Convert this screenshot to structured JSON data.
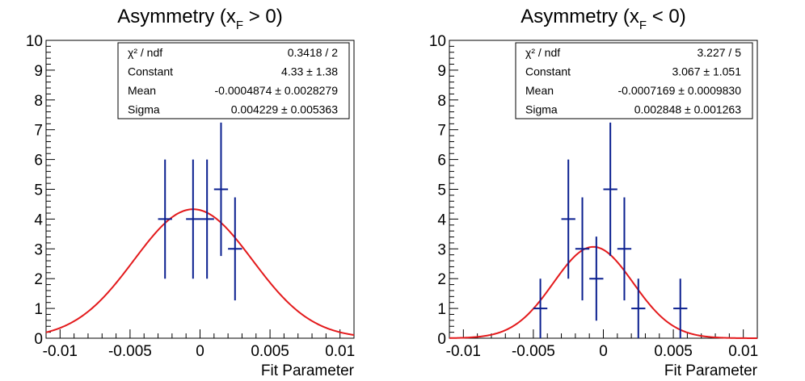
{
  "chart_data": [
    {
      "type": "scatter",
      "title_main": "Asymmetry (x",
      "title_sub": "F",
      "title_tail": " > 0)",
      "xlabel": "Fit Parameter",
      "ylabel": "",
      "xlim": [
        -0.011,
        0.011
      ],
      "ylim": [
        0,
        10
      ],
      "x_ticks": [
        -0.01,
        -0.005,
        0,
        0.005,
        0.01
      ],
      "x_tick_labels": [
        "-0.01",
        "-0.005",
        "0",
        "0.005",
        "0.01"
      ],
      "y_ticks": [
        0,
        1,
        2,
        3,
        4,
        5,
        6,
        7,
        8,
        9,
        10
      ],
      "y_tick_labels": [
        "0",
        "1",
        "2",
        "3",
        "4",
        "5",
        "6",
        "7",
        "8",
        "9",
        "10"
      ],
      "grid": false,
      "points": [
        {
          "x": -0.0025,
          "y": 4,
          "xerr": 0.0005,
          "yerr": 2
        },
        {
          "x": -0.0005,
          "y": 4,
          "xerr": 0.0005,
          "yerr": 2
        },
        {
          "x": 0.0005,
          "y": 4,
          "xerr": 0.0005,
          "yerr": 2
        },
        {
          "x": 0.0015,
          "y": 5,
          "xerr": 0.0005,
          "yerr": 2.24
        },
        {
          "x": 0.0025,
          "y": 3,
          "xerr": 0.0005,
          "yerr": 1.73
        }
      ],
      "fit": {
        "type": "gaus",
        "constant": 4.33,
        "mean": -0.0004874,
        "sigma": 0.004229
      },
      "stats": [
        {
          "label": "χ² / ndf",
          "value": "0.3418 / 2"
        },
        {
          "label": "Constant",
          "value": "4.33 ± 1.38"
        },
        {
          "label": "Mean",
          "value": "-0.0004874 ± 0.0028279"
        },
        {
          "label": "Sigma",
          "value": "0.004229 ± 0.005363"
        }
      ],
      "point_color": "#0a1f8f",
      "fit_color": "#e31a1c"
    },
    {
      "type": "scatter",
      "title_main": "Asymmetry (x",
      "title_sub": "F",
      "title_tail": " < 0)",
      "xlabel": "Fit Parameter",
      "ylabel": "",
      "xlim": [
        -0.011,
        0.011
      ],
      "ylim": [
        0,
        10
      ],
      "x_ticks": [
        -0.01,
        -0.005,
        0,
        0.005,
        0.01
      ],
      "x_tick_labels": [
        "-0.01",
        "-0.005",
        "0",
        "0.005",
        "0.01"
      ],
      "y_ticks": [
        0,
        1,
        2,
        3,
        4,
        5,
        6,
        7,
        8,
        9,
        10
      ],
      "y_tick_labels": [
        "0",
        "1",
        "2",
        "3",
        "4",
        "5",
        "6",
        "7",
        "8",
        "9",
        "10"
      ],
      "grid": false,
      "points": [
        {
          "x": -0.0045,
          "y": 1,
          "xerr": 0.0005,
          "yerr": 1
        },
        {
          "x": -0.0025,
          "y": 4,
          "xerr": 0.0005,
          "yerr": 2
        },
        {
          "x": -0.0015,
          "y": 3,
          "xerr": 0.0005,
          "yerr": 1.73
        },
        {
          "x": -0.0005,
          "y": 2,
          "xerr": 0.0005,
          "yerr": 1.41
        },
        {
          "x": 0.0005,
          "y": 5,
          "xerr": 0.0005,
          "yerr": 2.24
        },
        {
          "x": 0.0015,
          "y": 3,
          "xerr": 0.0005,
          "yerr": 1.73
        },
        {
          "x": 0.0025,
          "y": 1,
          "xerr": 0.0005,
          "yerr": 1
        },
        {
          "x": 0.0055,
          "y": 1,
          "xerr": 0.0005,
          "yerr": 1
        }
      ],
      "fit": {
        "type": "gaus",
        "constant": 3.067,
        "mean": -0.0007169,
        "sigma": 0.002848
      },
      "stats": [
        {
          "label": "χ² / ndf",
          "value": "3.227 / 5"
        },
        {
          "label": "Constant",
          "value": "3.067 ± 1.051"
        },
        {
          "label": "Mean",
          "value": "-0.0007169 ± 0.0009830"
        },
        {
          "label": "Sigma",
          "value": "0.002848 ± 0.001263"
        }
      ],
      "point_color": "#0a1f8f",
      "fit_color": "#e31a1c"
    }
  ]
}
